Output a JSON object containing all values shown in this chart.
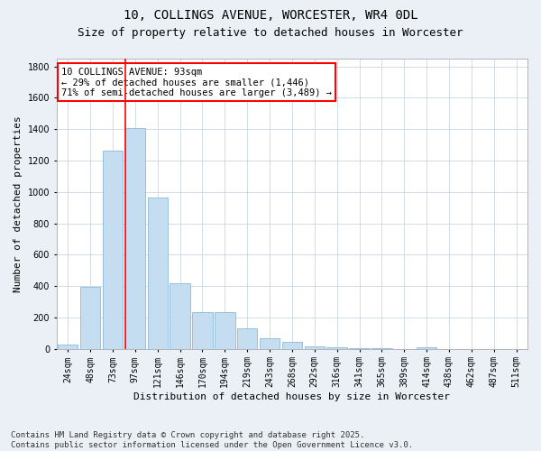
{
  "title": "10, COLLINGS AVENUE, WORCESTER, WR4 0DL",
  "subtitle": "Size of property relative to detached houses in Worcester",
  "xlabel": "Distribution of detached houses by size in Worcester",
  "ylabel": "Number of detached properties",
  "categories": [
    "24sqm",
    "48sqm",
    "73sqm",
    "97sqm",
    "121sqm",
    "146sqm",
    "170sqm",
    "194sqm",
    "219sqm",
    "243sqm",
    "268sqm",
    "292sqm",
    "316sqm",
    "341sqm",
    "365sqm",
    "389sqm",
    "414sqm",
    "438sqm",
    "462sqm",
    "487sqm",
    "511sqm"
  ],
  "values": [
    25,
    395,
    1265,
    1405,
    965,
    415,
    235,
    235,
    130,
    65,
    45,
    15,
    10,
    5,
    5,
    0,
    10,
    0,
    0,
    0,
    0
  ],
  "bar_color": "#c5ddf0",
  "bar_edge_color": "#7ab0d4",
  "vline_index": 3,
  "vline_color": "red",
  "annotation_text": "10 COLLINGS AVENUE: 93sqm\n← 29% of detached houses are smaller (1,446)\n71% of semi-detached houses are larger (3,489) →",
  "annotation_box_color": "red",
  "ylim": [
    0,
    1850
  ],
  "yticks": [
    0,
    200,
    400,
    600,
    800,
    1000,
    1200,
    1400,
    1600,
    1800
  ],
  "footer": "Contains HM Land Registry data © Crown copyright and database right 2025.\nContains public sector information licensed under the Open Government Licence v3.0.",
  "bg_color": "#eaf0f6",
  "plot_bg_color": "#ffffff",
  "grid_color": "#c8d8e8",
  "title_fontsize": 10,
  "subtitle_fontsize": 9,
  "axis_label_fontsize": 8,
  "tick_fontsize": 7,
  "annotation_fontsize": 7.5,
  "footer_fontsize": 6.5
}
